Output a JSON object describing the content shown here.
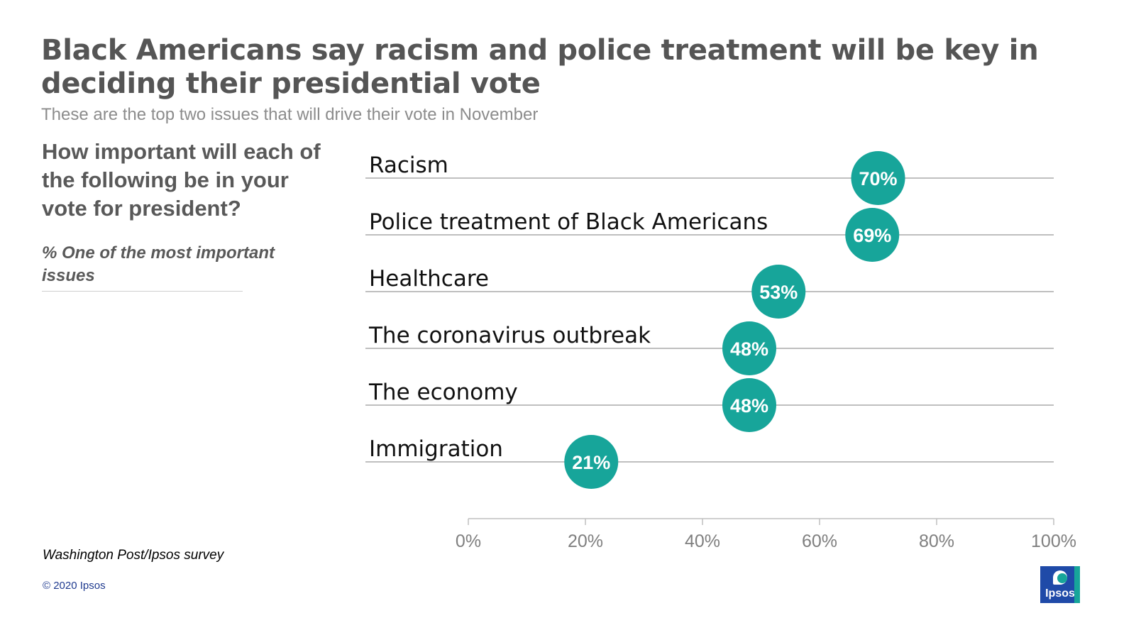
{
  "header": {
    "title": "Black Americans say racism and police treatment will be key in deciding their presidential vote",
    "subtitle": "These are the top two issues that will drive their vote in November"
  },
  "question": {
    "text": "How important will each of the following be in your vote for president?",
    "measure": "% One of the most important issues"
  },
  "footer": {
    "source": "Washington Post/Ipsos survey",
    "copyright": "© 2020 Ipsos",
    "logo_text": "Ipsos"
  },
  "colors": {
    "accent": "#17a59a",
    "title": "#555555",
    "gridline": "#bfbfbf",
    "axis_label": "#7f7f7f"
  },
  "chart_data": {
    "type": "scatter",
    "title": "How important will each of the following be in your vote for president?",
    "xlabel": "% One of the most important issues",
    "ylabel": "",
    "xlim": [
      0,
      100
    ],
    "x_ticks": [
      0,
      20,
      40,
      60,
      80,
      100
    ],
    "x_tick_labels": [
      "0%",
      "20%",
      "40%",
      "60%",
      "80%",
      "100%"
    ],
    "categories": [
      "Racism",
      "Police treatment of Black Americans",
      "Healthcare",
      "The coronavirus outbreak",
      "The economy",
      "Immigration"
    ],
    "values": [
      70,
      69,
      53,
      48,
      48,
      21
    ],
    "labels": [
      "70%",
      "69%",
      "53%",
      "48%",
      "48%",
      "21%"
    ],
    "marker": "circle",
    "grid": false
  }
}
